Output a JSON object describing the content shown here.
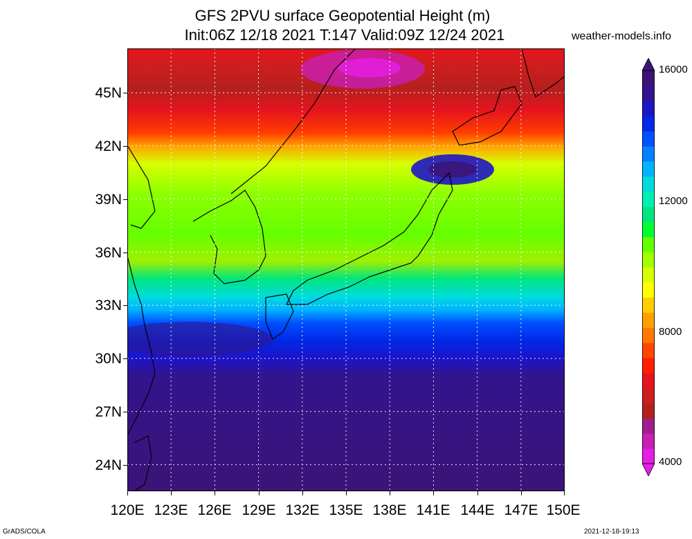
{
  "header": {
    "title_line1": "GFS 2PVU surface Geopotential Height (m)",
    "title_line2": "Init:06Z 12/18 2021 T:147 Valid:09Z 12/24 2021",
    "site": "weather-models.info"
  },
  "map": {
    "lat_labels": [
      "45N",
      "42N",
      "39N",
      "36N",
      "33N",
      "30N",
      "27N",
      "24N"
    ],
    "lon_labels": [
      "120E",
      "123E",
      "126E",
      "129E",
      "132E",
      "135E",
      "138E",
      "141E",
      "144E",
      "147E",
      "150E"
    ],
    "lat_range": [
      22.5,
      47.5
    ],
    "lon_range": [
      120,
      150
    ],
    "grid": true
  },
  "colorbar": {
    "labels": [
      "16000",
      "12000",
      "8000",
      "4000"
    ],
    "range": [
      4000,
      16000
    ],
    "colors": [
      "#e61ee6",
      "#c81eb4",
      "#a01e8c",
      "#b4201e",
      "#cd1e1e",
      "#e6141e",
      "#ff1e00",
      "#ff4600",
      "#ff7800",
      "#ffa000",
      "#ffcd00",
      "#ffff00",
      "#d7ff00",
      "#a0ff00",
      "#64ff00",
      "#00ff32",
      "#00e67d",
      "#00f0b4",
      "#00dcdc",
      "#00b4ff",
      "#0082ff",
      "#0050ff",
      "#0028e6",
      "#1e14c8",
      "#32148c",
      "#3c1478"
    ]
  },
  "footer": {
    "left": "GrADS/COLA",
    "right": "2021-12-18-19:13"
  }
}
